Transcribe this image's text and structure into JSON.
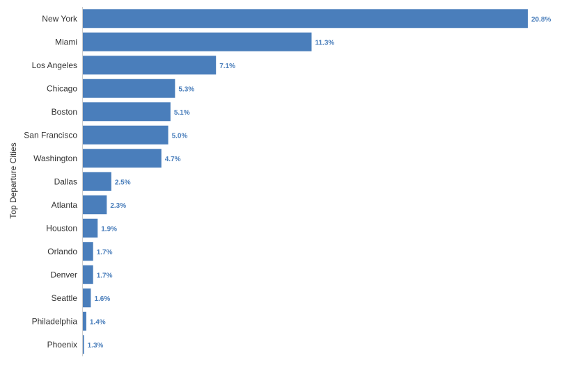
{
  "chart_data": {
    "type": "bar",
    "orientation": "horizontal",
    "title": "",
    "xlabel": "",
    "ylabel": "Top Departure Cities",
    "categories": [
      "New York",
      "Miami",
      "Los Angeles",
      "Chicago",
      "Boston",
      "San Francisco",
      "Washington",
      "Dallas",
      "Atlanta",
      "Houston",
      "Orlando",
      "Denver",
      "Seattle",
      "Philadelphia",
      "Phoenix"
    ],
    "values": [
      20.8,
      11.3,
      7.1,
      5.3,
      5.1,
      5.0,
      4.7,
      2.5,
      2.3,
      1.9,
      1.7,
      1.7,
      1.6,
      1.4,
      1.3
    ],
    "value_labels": [
      "20.8%",
      "11.3%",
      "7.1%",
      "5.3%",
      "5.1%",
      "5.0%",
      "4.7%",
      "2.5%",
      "2.3%",
      "1.9%",
      "1.7%",
      "1.7%",
      "1.6%",
      "1.4%",
      "1.3%"
    ],
    "value_unit": "%",
    "bar_baseline": 1.25,
    "xlim": [
      1.25,
      20.8
    ],
    "grid": false,
    "legend": "none",
    "bar_color": "#4a7ebb",
    "label_color": "#4a7ebb",
    "axis_color": "#cccccc"
  }
}
